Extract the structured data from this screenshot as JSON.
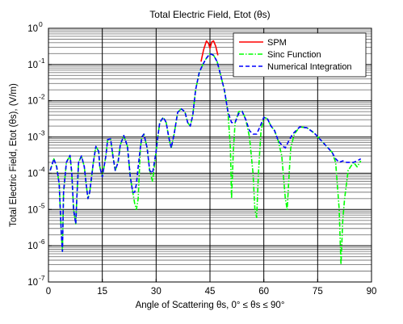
{
  "chart_data": {
    "type": "line",
    "title": "Total Electric Field, Etot (θs)",
    "xlabel": "Angle of Scattering θs, 0° ≤ θs ≤ 90°",
    "ylabel": "Total Electric Field, Etot (θs), (V/m)",
    "xlim": [
      0,
      90
    ],
    "ylim": [
      1e-07,
      1
    ],
    "yscale": "log",
    "grid": true,
    "legend_position": "top-right",
    "x_ticks": [
      "0",
      "15",
      "30",
      "45",
      "60",
      "75",
      "90"
    ],
    "y_ticks": [
      "10",
      "10",
      "10",
      "10",
      "10",
      "10",
      "10",
      "10"
    ],
    "y_tick_exponents": [
      "-7",
      "-6",
      "-5",
      "-4",
      "-3",
      "-2",
      "-1",
      "0"
    ],
    "series": [
      {
        "name": "SPM",
        "color": "#ff0000",
        "dash": "solid",
        "x": [
          42.5,
          43.2,
          44.0,
          44.6,
          45.0,
          45.5,
          46.0,
          46.6,
          47.2
        ],
        "y": [
          0.12,
          0.25,
          0.45,
          0.38,
          0.28,
          0.42,
          0.45,
          0.32,
          0.18
        ]
      },
      {
        "name": "Sinc Function",
        "color": "#00ff00",
        "dash": "dashdot",
        "x": [
          0.5,
          1.5,
          2.3,
          3.0,
          3.6,
          3.9,
          4.2,
          5.0,
          6.0,
          6.5,
          7.0,
          7.6,
          7.9,
          8.4,
          9.2,
          10.0,
          10.5,
          11.0,
          11.5,
          12.5,
          13.2,
          14.0,
          14.3,
          15.0,
          16.0,
          16.5,
          17.3,
          18.0,
          18.6,
          19.4,
          20.0,
          21.0,
          22.0,
          22.8,
          23.5,
          24.0,
          24.5,
          25.0,
          25.6,
          26.0,
          26.6,
          27.5,
          28.2,
          29.0,
          30.0,
          30.5,
          31.0,
          32.0,
          32.8,
          33.5,
          34.2,
          35.0,
          36.0,
          37.0,
          38.0,
          38.8,
          39.5,
          40.2,
          41.0,
          42.0,
          43.0,
          44.0,
          45.0,
          46.0,
          47.0,
          48.0,
          49.0,
          50.0,
          50.7,
          51.0,
          51.5,
          52.0,
          53.0,
          54.0,
          55.0,
          56.0,
          57.0,
          57.5,
          58.0,
          58.5,
          59.2,
          60.0,
          61.0,
          62.0,
          63.0,
          64.0,
          65.0,
          66.0,
          66.5,
          67.0,
          67.5,
          68.5,
          70.0,
          72.0,
          74.0,
          76.0,
          77.5,
          79.0,
          80.0,
          81.0,
          81.5,
          82.0,
          82.5,
          83.5,
          85.0,
          86.0,
          87.0
        ],
        "y": [
          0.00012,
          0.00025,
          0.00015,
          5e-05,
          2e-06,
          7e-07,
          3e-05,
          0.0002,
          0.00031,
          0.0001,
          1e-05,
          4e-06,
          2e-05,
          0.0002,
          0.0003,
          0.00015,
          5e-05,
          2e-05,
          3e-05,
          0.0002,
          0.00055,
          0.0004,
          0.00015,
          8e-05,
          0.0003,
          0.00085,
          0.0009,
          0.00028,
          0.00012,
          0.0002,
          0.0006,
          0.0011,
          0.00055,
          8e-05,
          3e-05,
          1.5e-05,
          1e-05,
          2e-05,
          0.0005,
          0.001,
          0.0012,
          0.0005,
          0.00012,
          6e-05,
          0.0004,
          0.0011,
          0.0025,
          0.0035,
          0.0025,
          0.001,
          0.0005,
          0.0012,
          0.0048,
          0.006,
          0.005,
          0.0025,
          0.002,
          0.004,
          0.02,
          0.06,
          0.1,
          0.15,
          0.2,
          0.18,
          0.12,
          0.05,
          0.02,
          0.005,
          0.0005,
          2e-05,
          0.0004,
          0.0025,
          0.005,
          0.0052,
          0.003,
          0.001,
          0.0001,
          1e-05,
          6e-06,
          0.0001,
          0.0014,
          0.0035,
          0.0032,
          0.002,
          0.0015,
          0.0008,
          0.0003,
          2e-05,
          1e-05,
          8e-05,
          0.0005,
          0.0012,
          0.0019,
          0.0018,
          0.0013,
          0.0008,
          0.00055,
          0.00038,
          0.0002,
          1e-05,
          3e-07,
          5e-06,
          2e-05,
          0.00012,
          0.0002,
          0.00015,
          0.00022
        ]
      },
      {
        "name": "Numerical Integration",
        "color": "#0000ff",
        "dash": "dashed",
        "x": [
          0.5,
          1.5,
          2.3,
          3.0,
          3.6,
          3.9,
          4.2,
          5.0,
          6.0,
          6.5,
          7.0,
          7.6,
          7.9,
          8.4,
          9.2,
          10.0,
          10.5,
          11.0,
          11.5,
          12.5,
          13.2,
          14.0,
          14.3,
          15.0,
          16.0,
          16.5,
          17.3,
          18.0,
          18.6,
          19.4,
          20.0,
          21.0,
          22.0,
          22.8,
          23.5,
          24.0,
          24.5,
          25.0,
          25.6,
          26.0,
          26.6,
          27.5,
          28.2,
          29.0,
          30.0,
          30.5,
          31.0,
          32.0,
          32.8,
          33.5,
          34.2,
          35.0,
          36.0,
          37.0,
          38.0,
          38.8,
          39.5,
          40.2,
          41.0,
          42.0,
          43.0,
          44.0,
          45.0,
          46.0,
          47.0,
          48.0,
          49.0,
          50.0,
          51.0,
          52.0,
          53.0,
          54.0,
          55.0,
          56.0,
          57.0,
          58.0,
          59.0,
          60.0,
          61.0,
          62.0,
          63.0,
          64.0,
          65.0,
          66.0,
          67.0,
          68.0,
          70.0,
          72.0,
          74.0,
          76.0,
          77.5,
          79.0,
          80.0,
          81.0,
          82.0,
          83.0,
          84.0,
          85.0,
          86.0,
          87.0
        ],
        "y": [
          0.00012,
          0.00025,
          0.00015,
          5e-05,
          2e-06,
          7e-07,
          3e-05,
          0.0002,
          0.00031,
          0.0001,
          1e-05,
          4e-06,
          2e-05,
          0.0002,
          0.0003,
          0.00015,
          5e-05,
          2e-05,
          3e-05,
          0.0002,
          0.00055,
          0.0004,
          0.00015,
          8e-05,
          0.0003,
          0.00085,
          0.0009,
          0.00028,
          0.00012,
          0.0002,
          0.0006,
          0.0011,
          0.00055,
          8e-05,
          3e-05,
          3e-05,
          5e-05,
          0.00015,
          0.0005,
          0.001,
          0.0012,
          0.0005,
          0.00012,
          0.0001,
          0.0004,
          0.0011,
          0.0025,
          0.0035,
          0.0025,
          0.001,
          0.0005,
          0.0012,
          0.0048,
          0.006,
          0.005,
          0.0025,
          0.002,
          0.004,
          0.02,
          0.06,
          0.1,
          0.15,
          0.2,
          0.18,
          0.12,
          0.05,
          0.02,
          0.005,
          0.0025,
          0.0025,
          0.0045,
          0.005,
          0.003,
          0.0015,
          0.0012,
          0.0012,
          0.002,
          0.0035,
          0.0032,
          0.002,
          0.0015,
          0.0008,
          0.0006,
          0.0005,
          0.0008,
          0.0012,
          0.0019,
          0.0018,
          0.0013,
          0.0008,
          0.00055,
          0.00038,
          0.00025,
          0.0002,
          0.00022,
          0.0002,
          0.0002,
          0.0002,
          0.00022,
          0.00025
        ]
      }
    ]
  }
}
